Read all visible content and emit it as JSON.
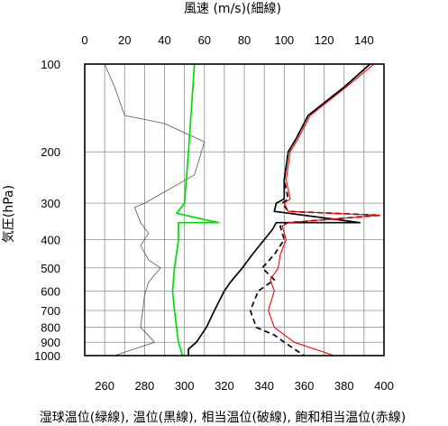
{
  "chart_data": {
    "type": "line",
    "top_axis_title": "風速 (m/s)(細線)",
    "y_axis_title": "気圧(hPa)",
    "bottom_axis_title": "湿球温位(緑線), 温位(黒線), 相当温位(破線), 飽和相当温位(赤線)",
    "y_scale": "log",
    "y_reversed": true,
    "ylim": [
      1000,
      100
    ],
    "y_ticks": [
      100,
      200,
      300,
      400,
      500,
      600,
      700,
      800,
      900,
      1000
    ],
    "xlim_bottom": [
      250,
      400
    ],
    "x_ticks_bottom": [
      260,
      280,
      300,
      320,
      340,
      360,
      380,
      400
    ],
    "xlim_top": [
      0,
      150
    ],
    "x_ticks_top": [
      0,
      20,
      40,
      60,
      80,
      100,
      120,
      140
    ],
    "grid": true,
    "series": [
      {
        "key": "wind",
        "axis": "top",
        "color": "#555555",
        "style": "thin",
        "points": [
          [
            10,
            100
          ],
          [
            15,
            120
          ],
          [
            20,
            150
          ],
          [
            40,
            160
          ],
          [
            60,
            185
          ],
          [
            55,
            240
          ],
          [
            30,
            300
          ],
          [
            25,
            310
          ],
          [
            28,
            350
          ],
          [
            32,
            380
          ],
          [
            28,
            420
          ],
          [
            32,
            470
          ],
          [
            38,
            500
          ],
          [
            32,
            560
          ],
          [
            30,
            620
          ],
          [
            28,
            800
          ],
          [
            35,
            900
          ],
          [
            15,
            1000
          ]
        ]
      },
      {
        "key": "wet_bulb_potential_temperature",
        "axis": "bottom",
        "color": "#00dd00",
        "style": "solid",
        "points": [
          [
            305,
            100
          ],
          [
            302,
            200
          ],
          [
            300,
            300
          ],
          [
            296,
            325
          ],
          [
            317,
            350
          ],
          [
            297,
            350
          ],
          [
            297,
            400
          ],
          [
            295,
            500
          ],
          [
            294,
            600
          ],
          [
            295,
            700
          ],
          [
            296,
            800
          ],
          [
            297,
            900
          ],
          [
            299,
            1000
          ]
        ]
      },
      {
        "key": "potential_temperature",
        "axis": "bottom",
        "color": "#000000",
        "style": "solid",
        "points": [
          [
            393,
            100
          ],
          [
            380,
            120
          ],
          [
            362,
            150
          ],
          [
            356,
            180
          ],
          [
            352,
            200
          ],
          [
            350,
            250
          ],
          [
            350,
            290
          ],
          [
            346,
            300
          ],
          [
            345,
            320
          ],
          [
            388,
            350
          ],
          [
            346,
            350
          ],
          [
            344,
            370
          ],
          [
            340,
            400
          ],
          [
            334,
            450
          ],
          [
            329,
            500
          ],
          [
            323,
            560
          ],
          [
            320,
            600
          ],
          [
            315,
            700
          ],
          [
            311,
            800
          ],
          [
            306,
            900
          ],
          [
            302,
            950
          ],
          [
            302,
            1000
          ]
        ]
      },
      {
        "key": "equivalent_potential_temperature",
        "axis": "bottom",
        "color": "#000000",
        "style": "dashed",
        "points": [
          [
            393,
            100
          ],
          [
            380,
            120
          ],
          [
            362,
            150
          ],
          [
            356,
            180
          ],
          [
            352,
            200
          ],
          [
            350,
            250
          ],
          [
            352,
            290
          ],
          [
            349,
            300
          ],
          [
            352,
            320
          ],
          [
            398,
            330
          ],
          [
            352,
            350
          ],
          [
            348,
            360
          ],
          [
            350,
            400
          ],
          [
            345,
            450
          ],
          [
            339,
            500
          ],
          [
            345,
            550
          ],
          [
            337,
            600
          ],
          [
            333,
            700
          ],
          [
            336,
            800
          ],
          [
            345,
            850
          ],
          [
            350,
            900
          ],
          [
            360,
            1000
          ]
        ]
      },
      {
        "key": "saturated_equivalent_potential_temperature",
        "axis": "bottom",
        "color": "#ff0000",
        "style": "solid",
        "points": [
          [
            395,
            100
          ],
          [
            381,
            120
          ],
          [
            363,
            150
          ],
          [
            357,
            180
          ],
          [
            353,
            200
          ],
          [
            351,
            250
          ],
          [
            353,
            290
          ],
          [
            350,
            300
          ],
          [
            352,
            320
          ],
          [
            398,
            330
          ],
          [
            352,
            350
          ],
          [
            349,
            360
          ],
          [
            351,
            400
          ],
          [
            348,
            450
          ],
          [
            347,
            500
          ],
          [
            343,
            550
          ],
          [
            345,
            600
          ],
          [
            342,
            700
          ],
          [
            345,
            800
          ],
          [
            355,
            900
          ],
          [
            375,
            1000
          ]
        ]
      }
    ]
  }
}
